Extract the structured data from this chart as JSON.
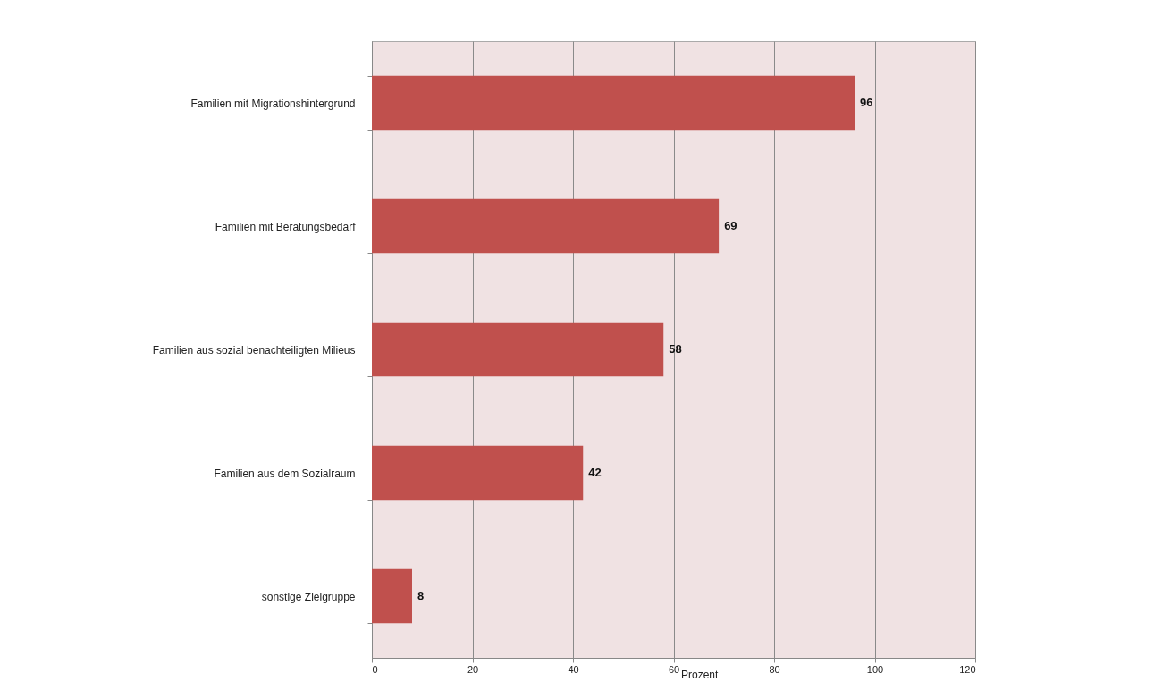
{
  "chart_data": {
    "type": "bar",
    "orientation": "horizontal",
    "categories": [
      "Familien mit Migrationshintergrund",
      "Familien mit Beratungsbedarf",
      "Familien aus sozial benachteiligten Milieus",
      "Familien aus dem Sozialraum",
      "sonstige Zielgruppe"
    ],
    "values": [
      96,
      69,
      58,
      42,
      8
    ],
    "color": "#c0504d",
    "xlabel": "Prozent",
    "xlim": [
      0,
      120
    ],
    "xticks": [
      0,
      20,
      40,
      60,
      80,
      100,
      120
    ],
    "grid": "x",
    "data_labels": true
  }
}
